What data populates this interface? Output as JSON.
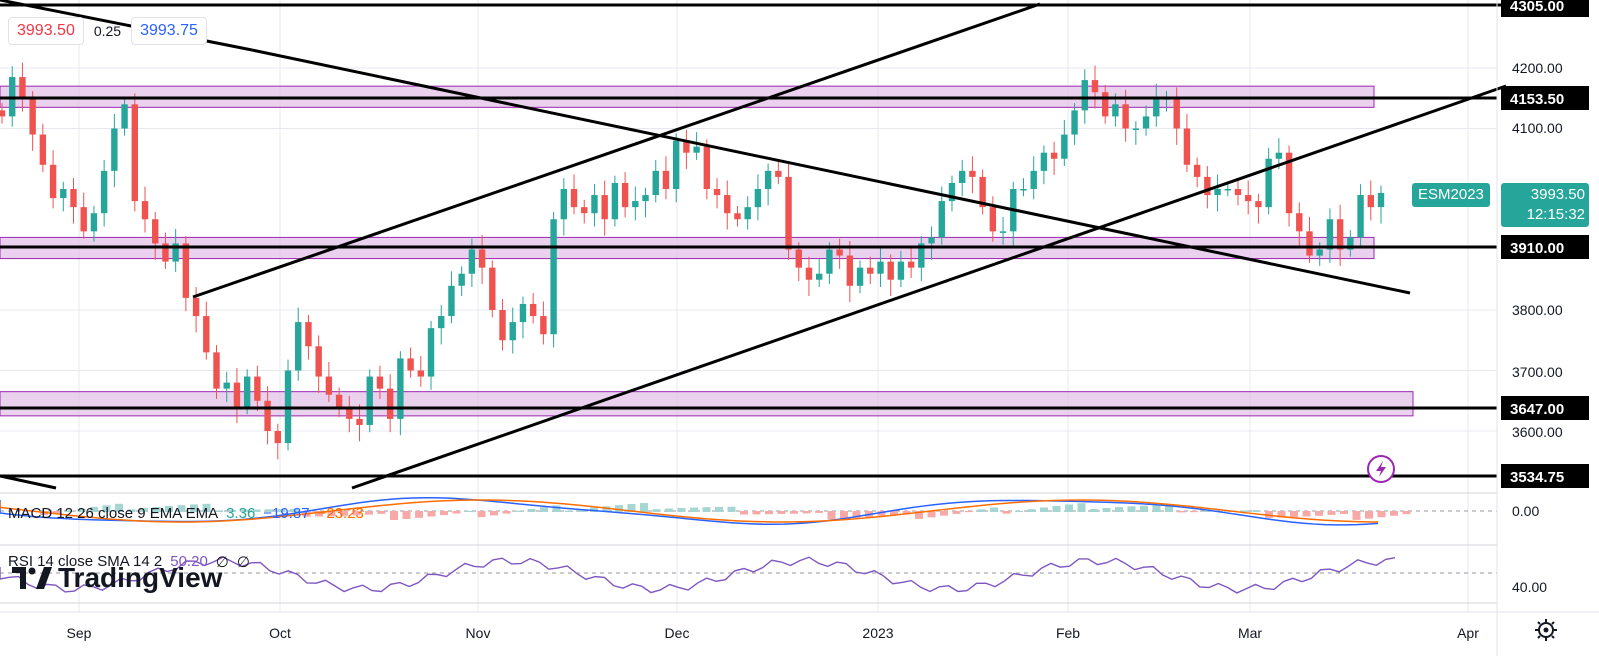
{
  "quote": {
    "bid": "3993.50",
    "spread": "0.25",
    "ask": "3993.75"
  },
  "symbol_tag": {
    "symbol": "ESM2023",
    "price": "3993.50",
    "countdown": "12:15:32"
  },
  "level_labels": [
    "4305.00",
    "4153.50",
    "3910.00",
    "3647.00",
    "3534.75"
  ],
  "price_ticks": [
    "4200.00",
    "4100.00",
    "3800.00",
    "3700.00",
    "3600.00"
  ],
  "time_ticks": [
    "Sep",
    "Oct",
    "Nov",
    "Dec",
    "2023",
    "Feb",
    "Mar",
    "Apr"
  ],
  "macd": {
    "label": "MACD 12 26 close 9 EMA EMA",
    "hist": "3.36",
    "macd": "−19.87",
    "signal": "−23.23",
    "tick": "0.00"
  },
  "rsi": {
    "label": "RSI 14 close SMA 14 2",
    "value": "50.20",
    "na1": "∅",
    "na2": "∅",
    "tick": "40.00"
  },
  "brand": "TradingView",
  "colors": {
    "up": "#26a69a",
    "down": "#ef5350",
    "zone_fill": "#e1bee7",
    "zone_border": "#9c27b0",
    "macd_line": "#2962ff",
    "signal_line": "#ff6d00",
    "rsi_line": "#7e57c2",
    "symbol_tag": "#26a69a"
  },
  "chart_data": {
    "type": "candlestick",
    "symbol": "ESM2023",
    "ylim": [
      3520,
      4310
    ],
    "x": [
      "Sep",
      "Oct",
      "Nov",
      "Dec",
      "2023",
      "Feb",
      "Mar",
      "Apr"
    ],
    "horizontal_levels": [
      4305.0,
      4153.5,
      3910.0,
      3647.0,
      3534.75
    ],
    "zones": [
      [
        4135,
        4170
      ],
      [
        3885,
        3920
      ],
      [
        3625,
        3665
      ]
    ],
    "candles_close": [
      4120,
      4185,
      4150,
      4090,
      4040,
      3985,
      4000,
      3970,
      3930,
      3960,
      4030,
      4100,
      4140,
      3980,
      3950,
      3910,
      3880,
      3910,
      3820,
      3790,
      3730,
      3670,
      3680,
      3640,
      3690,
      3650,
      3600,
      3580,
      3700,
      3780,
      3740,
      3690,
      3660,
      3640,
      3620,
      3610,
      3690,
      3670,
      3620,
      3720,
      3700,
      3690,
      3770,
      3790,
      3840,
      3860,
      3900,
      3870,
      3800,
      3750,
      3780,
      3810,
      3790,
      3760,
      3950,
      4000,
      3970,
      3960,
      3990,
      3950,
      4010,
      3970,
      3980,
      3990,
      4030,
      4000,
      4080,
      4060,
      4070,
      4000,
      3990,
      3960,
      3950,
      3970,
      4000,
      4030,
      4020,
      3900,
      3870,
      3850,
      3860,
      3900,
      3890,
      3840,
      3870,
      3860,
      3880,
      3850,
      3880,
      3870,
      3910,
      3920,
      3980,
      4010,
      4030,
      4020,
      3970,
      3930,
      3930,
      4000,
      4000,
      4030,
      4060,
      4050,
      4090,
      4130,
      4180,
      4160,
      4120,
      4140,
      4100,
      4100,
      4120,
      4150,
      4150,
      4100,
      4040,
      4020,
      3990,
      4000,
      4000,
      3990,
      3980,
      3970,
      4050,
      4060,
      3960,
      3930,
      3890,
      3900,
      3950,
      3900,
      3920,
      3990,
      3970,
      3993.5
    ],
    "macd": {
      "hist": 3.36,
      "macd": -19.87,
      "signal": -23.23
    },
    "rsi": {
      "value": 50.2
    }
  }
}
